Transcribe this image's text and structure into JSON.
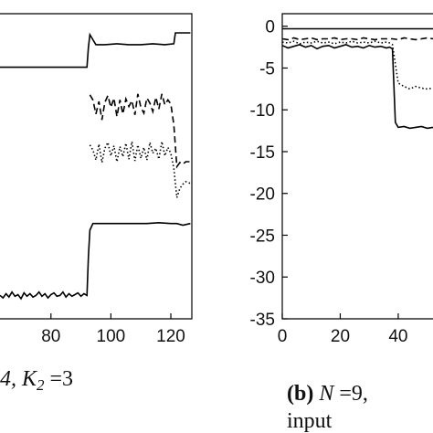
{
  "chart_data": [
    {
      "type": "line",
      "panel": "left (cropped)",
      "xlim": [
        63,
        127
      ],
      "ylim": [
        -35,
        1.5
      ],
      "x_ticks": [
        80,
        100,
        120
      ],
      "x_tick_labels": [
        "80",
        "100",
        "120"
      ],
      "grid": false,
      "legend": "none",
      "series": [
        {
          "style": "solid",
          "x": [
            63,
            68,
            72,
            76,
            80,
            84,
            88,
            92,
            92.5,
            93,
            95,
            98,
            102,
            106,
            110,
            114,
            118,
            121,
            121.5,
            122,
            124,
            126.5
          ],
          "y": [
            -4.9,
            -4.9,
            -4.9,
            -4.9,
            -4.9,
            -4.9,
            -4.9,
            -4.9,
            -2.5,
            -1.0,
            -2.2,
            -2.2,
            -2.1,
            -2.2,
            -2.2,
            -2.1,
            -2.2,
            -2.1,
            -0.8,
            -0.8,
            -0.8,
            -0.8
          ]
        },
        {
          "style": "dashed",
          "x": [
            93,
            94,
            95,
            96,
            97,
            98,
            99,
            100,
            101,
            102,
            103,
            104,
            105,
            106,
            107,
            108,
            109,
            110,
            111,
            112,
            113,
            114,
            115,
            116,
            117,
            118,
            119,
            120,
            121,
            122,
            123,
            124,
            125,
            126.5
          ],
          "y": [
            -8.2,
            -8.8,
            -10.5,
            -9.0,
            -11.2,
            -9.1,
            -8.3,
            -9.7,
            -8.6,
            -10.8,
            -8.8,
            -10.5,
            -8.7,
            -9.6,
            -8.9,
            -10.6,
            -8.1,
            -9.7,
            -10.4,
            -8.6,
            -9.2,
            -10.2,
            -8.5,
            -9.9,
            -8.1,
            -9.4,
            -8.8,
            -9.3,
            -11.8,
            -16.8,
            -16.3,
            -16.5,
            -16.2,
            -16.2
          ]
        },
        {
          "style": "dotted",
          "x": [
            93,
            94,
            95,
            96,
            97,
            98,
            99,
            100,
            101,
            102,
            103,
            104,
            105,
            106,
            107,
            108,
            109,
            110,
            111,
            112,
            113,
            114,
            115,
            116,
            117,
            118,
            119,
            120,
            121,
            122,
            123,
            124,
            125,
            126.5
          ],
          "y": [
            -14.2,
            -14.8,
            -16.0,
            -14.1,
            -16.3,
            -14.6,
            -13.9,
            -15.5,
            -14.3,
            -16.2,
            -14.4,
            -15.6,
            -14.0,
            -15.9,
            -13.8,
            -16.1,
            -14.2,
            -15.8,
            -14.5,
            -16.0,
            -13.9,
            -15.2,
            -14.6,
            -15.9,
            -13.8,
            -15.5,
            -14.5,
            -15.2,
            -17.0,
            -20.5,
            -19.4,
            -18.9,
            -18.6,
            -18.8
          ]
        },
        {
          "style": "solid",
          "x": [
            63,
            64,
            65,
            66,
            67,
            68,
            69,
            70,
            71,
            72,
            73,
            74,
            75,
            76,
            77,
            78,
            79,
            80,
            81,
            82,
            83,
            84,
            85,
            86,
            87,
            88,
            89,
            90,
            91,
            92,
            92.5,
            93,
            94,
            96,
            100,
            104,
            108,
            112,
            116,
            120,
            122,
            124,
            126.5
          ],
          "y": [
            -32.2,
            -32.5,
            -32.0,
            -32.4,
            -31.8,
            -32.3,
            -32.1,
            -32.6,
            -31.9,
            -32.3,
            -32.0,
            -32.4,
            -32.2,
            -31.8,
            -32.3,
            -32.0,
            -32.5,
            -32.1,
            -31.9,
            -32.3,
            -32.2,
            -31.8,
            -32.4,
            -32.0,
            -32.3,
            -32.1,
            -31.9,
            -32.3,
            -32.0,
            -32.2,
            -27.5,
            -24.4,
            -23.6,
            -23.6,
            -23.6,
            -23.6,
            -23.6,
            -23.6,
            -23.5,
            -23.6,
            -23.6,
            -23.8,
            -23.6
          ]
        }
      ],
      "caption": {
        "math": "4,  K",
        "subscript": "2",
        "suffix": " =3"
      }
    },
    {
      "type": "line",
      "panel": "right (cropped)",
      "xlim": [
        0,
        52
      ],
      "ylim": [
        -35,
        1.5
      ],
      "y_ticks": [
        0,
        -5,
        -10,
        -15,
        -20,
        -25,
        -30,
        -35
      ],
      "y_tick_labels": [
        "0",
        "-5",
        "-10",
        "-15",
        "-20",
        "-25",
        "-30",
        "-35"
      ],
      "x_ticks": [
        0,
        20,
        40
      ],
      "x_tick_labels": [
        "0",
        "20",
        "40"
      ],
      "grid": false,
      "legend": "none",
      "series": [
        {
          "style": "solid",
          "x": [
            0,
            5,
            10,
            15,
            20,
            25,
            30,
            35,
            40,
            45,
            50,
            52
          ],
          "y": [
            -0.3,
            -0.3,
            -0.3,
            -0.3,
            -0.3,
            -0.3,
            -0.3,
            -0.3,
            -0.3,
            -0.3,
            -0.3,
            -0.3
          ]
        },
        {
          "style": "dashed",
          "x": [
            0,
            2,
            4,
            6,
            8,
            10,
            12,
            14,
            16,
            18,
            20,
            22,
            24,
            26,
            28,
            30,
            32,
            34,
            36,
            38,
            40,
            42,
            44,
            46,
            48,
            50,
            52
          ],
          "y": [
            -1.5,
            -1.6,
            -1.4,
            -1.6,
            -1.5,
            -1.4,
            -1.6,
            -1.5,
            -1.5,
            -1.4,
            -1.6,
            -1.5,
            -1.5,
            -1.6,
            -1.4,
            -1.5,
            -1.6,
            -1.5,
            -1.5,
            -1.5,
            -1.6,
            -1.4,
            -1.5,
            -1.6,
            -1.5,
            -1.4,
            -1.5
          ]
        },
        {
          "style": "dotted",
          "x": [
            0,
            2,
            4,
            6,
            8,
            10,
            12,
            14,
            16,
            18,
            20,
            22,
            24,
            26,
            28,
            30,
            32,
            34,
            36,
            37,
            38,
            39,
            40,
            42,
            44,
            46,
            48,
            50,
            52
          ],
          "y": [
            -1.9,
            -2.0,
            -1.8,
            -2.1,
            -1.9,
            -2.0,
            -1.8,
            -2.0,
            -1.9,
            -2.1,
            -1.9,
            -2.0,
            -1.8,
            -2.0,
            -1.9,
            -2.0,
            -1.8,
            -2.0,
            -1.9,
            -2.0,
            -2.2,
            -4.5,
            -6.8,
            -7.2,
            -7.5,
            -7.2,
            -7.4,
            -7.5,
            -7.4
          ]
        },
        {
          "style": "solid",
          "x": [
            0,
            2,
            4,
            6,
            8,
            10,
            12,
            14,
            16,
            18,
            20,
            22,
            24,
            26,
            28,
            30,
            32,
            34,
            36,
            37,
            38,
            39,
            40,
            42,
            44,
            46,
            48,
            50,
            52
          ],
          "y": [
            -2.3,
            -2.6,
            -2.4,
            -2.2,
            -2.5,
            -2.3,
            -2.7,
            -2.4,
            -2.3,
            -2.6,
            -2.4,
            -2.2,
            -2.5,
            -2.4,
            -2.6,
            -2.3,
            -2.5,
            -2.4,
            -2.6,
            -2.5,
            -2.7,
            -11.5,
            -12.1,
            -12.0,
            -12.2,
            -12.1,
            -12.0,
            -12.2,
            -12.1
          ]
        }
      ],
      "caption": {
        "label": "(b)",
        "math_n": "N",
        "line1_suffix": " =9,",
        "line2": "input"
      }
    }
  ]
}
